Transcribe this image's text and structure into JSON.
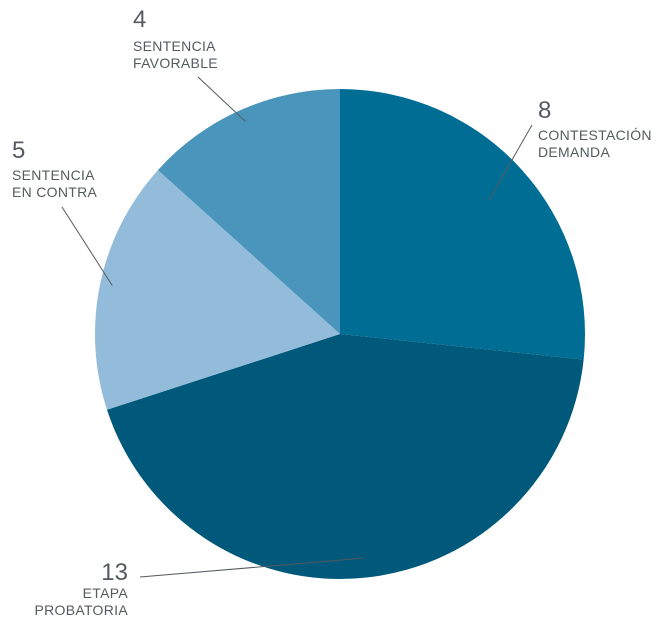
{
  "chart_data": {
    "type": "pie",
    "title": "",
    "slices": [
      {
        "value": 8,
        "value_label": "8",
        "label_lines": [
          "CONTESTACIÓN",
          "DEMANDA"
        ],
        "color": "#006d94"
      },
      {
        "value": 13,
        "value_label": "13",
        "label_lines": [
          "ETAPA",
          "PROBATORIA"
        ],
        "color": "#00587a"
      },
      {
        "value": 5,
        "value_label": "5",
        "label_lines": [
          "SENTENCIA",
          "EN CONTRA"
        ],
        "color": "#93bcdb"
      },
      {
        "value": 4,
        "value_label": "4",
        "label_lines": [
          "SENTENCIA",
          "FAVORABLE"
        ],
        "color": "#4a95bb"
      }
    ],
    "start_angle": "12 o'clock",
    "direction": "clockwise",
    "legend": "none"
  }
}
